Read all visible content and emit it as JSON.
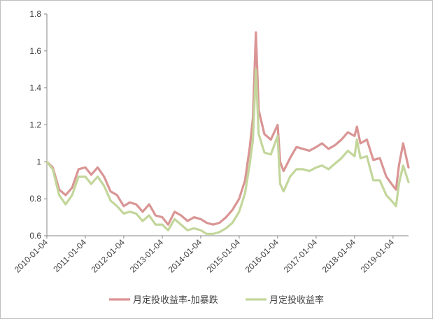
{
  "chart_data": {
    "type": "line",
    "title": "",
    "xlabel": "",
    "ylabel": "",
    "ylim": [
      0.6,
      1.8
    ],
    "y_ticks": [
      "0.6",
      "0.8",
      "1",
      "1.2",
      "1.4",
      "1.6",
      "1.8"
    ],
    "x_ticks": [
      "2010-01-04",
      "2011-01-04",
      "2012-01-04",
      "2013-01-04",
      "2014-01-04",
      "2015-01-04",
      "2016-01-04",
      "2017-01-04",
      "2018-01-04",
      "2019-01-04"
    ],
    "x_range": [
      "2010-01-04",
      "2019-05-31"
    ],
    "grid": false,
    "legend_position": "bottom",
    "x": [
      "2010-01-04",
      "2010-03-01",
      "2010-05-01",
      "2010-07-01",
      "2010-09-01",
      "2010-11-01",
      "2011-01-04",
      "2011-03-01",
      "2011-05-01",
      "2011-07-01",
      "2011-09-01",
      "2011-11-01",
      "2012-01-04",
      "2012-03-01",
      "2012-05-01",
      "2012-07-01",
      "2012-09-01",
      "2012-11-01",
      "2013-01-04",
      "2013-03-01",
      "2013-05-01",
      "2013-07-01",
      "2013-09-01",
      "2013-11-01",
      "2014-01-04",
      "2014-03-01",
      "2014-05-01",
      "2014-07-01",
      "2014-09-01",
      "2014-11-01",
      "2015-01-04",
      "2015-03-01",
      "2015-04-15",
      "2015-05-15",
      "2015-06-12",
      "2015-07-08",
      "2015-09-01",
      "2015-11-01",
      "2016-01-04",
      "2016-01-28",
      "2016-03-01",
      "2016-05-01",
      "2016-07-01",
      "2016-09-01",
      "2016-11-01",
      "2017-01-04",
      "2017-03-01",
      "2017-05-01",
      "2017-07-01",
      "2017-09-01",
      "2017-11-01",
      "2018-01-04",
      "2018-01-26",
      "2018-03-01",
      "2018-05-01",
      "2018-07-01",
      "2018-09-01",
      "2018-11-01",
      "2019-01-04",
      "2019-02-01",
      "2019-03-01",
      "2019-04-10",
      "2019-05-31"
    ],
    "series": [
      {
        "name": "月定投收益率-加暴跌",
        "color": "#d99594",
        "values": [
          1.0,
          0.97,
          0.85,
          0.82,
          0.86,
          0.96,
          0.97,
          0.93,
          0.97,
          0.92,
          0.84,
          0.82,
          0.76,
          0.78,
          0.77,
          0.73,
          0.77,
          0.71,
          0.7,
          0.66,
          0.73,
          0.71,
          0.68,
          0.7,
          0.69,
          0.67,
          0.66,
          0.67,
          0.7,
          0.74,
          0.8,
          0.9,
          1.08,
          1.24,
          1.7,
          1.28,
          1.15,
          1.12,
          1.2,
          1.0,
          0.95,
          1.02,
          1.08,
          1.07,
          1.06,
          1.08,
          1.1,
          1.07,
          1.09,
          1.12,
          1.16,
          1.14,
          1.19,
          1.1,
          1.12,
          1.01,
          1.02,
          0.92,
          0.87,
          0.85,
          0.98,
          1.1,
          0.97
        ]
      },
      {
        "name": "月定投收益率",
        "color": "#c3d69b",
        "values": [
          1.0,
          0.96,
          0.82,
          0.77,
          0.82,
          0.92,
          0.92,
          0.88,
          0.92,
          0.87,
          0.79,
          0.76,
          0.72,
          0.73,
          0.72,
          0.68,
          0.71,
          0.66,
          0.66,
          0.63,
          0.69,
          0.66,
          0.63,
          0.64,
          0.63,
          0.61,
          0.61,
          0.62,
          0.64,
          0.67,
          0.73,
          0.83,
          0.99,
          1.12,
          1.5,
          1.15,
          1.05,
          1.04,
          1.14,
          0.88,
          0.84,
          0.92,
          0.96,
          0.96,
          0.95,
          0.97,
          0.98,
          0.96,
          0.99,
          1.02,
          1.06,
          1.03,
          1.12,
          1.02,
          1.03,
          0.9,
          0.9,
          0.82,
          0.78,
          0.76,
          0.88,
          0.98,
          0.89
        ]
      }
    ]
  }
}
